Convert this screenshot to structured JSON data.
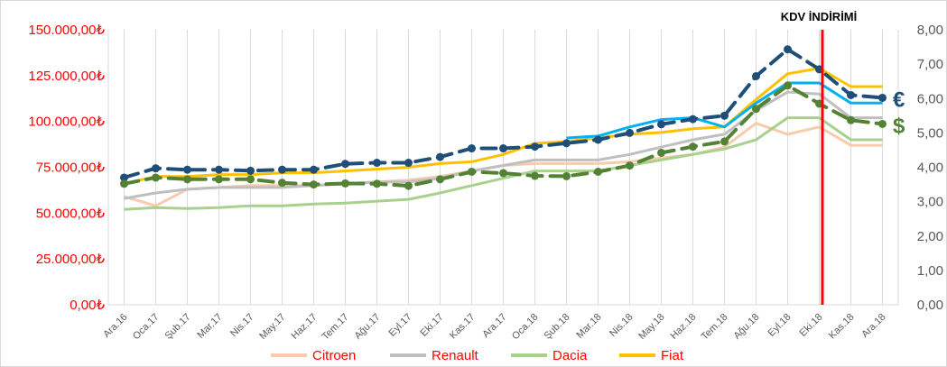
{
  "chart_data": {
    "type": "line",
    "categories": [
      "Ara.16",
      "Oca.17",
      "Şub.17",
      "Mar.17",
      "Nis.17",
      "May.17",
      "Haz.17",
      "Tem.17",
      "Ağu.17",
      "Eyl.17",
      "Eki.17",
      "Kas.17",
      "Ara.17",
      "Oca.18",
      "Şub.18",
      "Mar.18",
      "Nis.18",
      "May.18",
      "Haz.18",
      "Tem.18",
      "Ağu.18",
      "Eyl.18",
      "Eki.18",
      "Kas.18",
      "Ara.18"
    ],
    "y_left": {
      "ylim": [
        0,
        150000
      ],
      "ticks": [
        0,
        25000,
        50000,
        75000,
        100000,
        125000,
        150000
      ],
      "tick_labels": [
        "0,00₺",
        "25.000,00₺",
        "50.000,00₺",
        "75.000,00₺",
        "100.000,00₺",
        "125.000,00₺",
        "150.000,00₺"
      ],
      "color": "#ff0000"
    },
    "y_right": {
      "ylim": [
        0,
        8
      ],
      "ticks": [
        0,
        1,
        2,
        3,
        4,
        5,
        6,
        7,
        8
      ],
      "tick_labels": [
        "0,00",
        "1,00",
        "2,00",
        "3,00",
        "4,00",
        "5,00",
        "6,00",
        "7,00",
        "8,00"
      ],
      "color": "#595959"
    },
    "series": [
      {
        "name": "Citroen",
        "axis": "left",
        "color": "#f8cbad",
        "values": [
          59000,
          54000,
          63000,
          64000,
          65000,
          65000,
          65000,
          66000,
          67000,
          68000,
          70000,
          73000,
          76000,
          77000,
          77000,
          77000,
          78000,
          80000,
          82000,
          86000,
          99000,
          93000,
          97000,
          87000,
          87000
        ]
      },
      {
        "name": "Renault",
        "axis": "left",
        "color": "#bfbfbf",
        "values": [
          58000,
          61000,
          63000,
          64000,
          64000,
          64000,
          65000,
          66000,
          67000,
          67000,
          69000,
          73000,
          76000,
          79000,
          79000,
          79000,
          82000,
          86000,
          90000,
          93000,
          106000,
          116000,
          115000,
          102000,
          102000
        ]
      },
      {
        "name": "Dacia",
        "axis": "left",
        "color": "#a9d18e",
        "values": [
          52000,
          53000,
          52500,
          53000,
          54000,
          54000,
          55000,
          55500,
          56500,
          57500,
          61000,
          65000,
          69000,
          73000,
          73000,
          73000,
          76000,
          79000,
          82000,
          85000,
          90000,
          102000,
          102000,
          90000,
          90000
        ]
      },
      {
        "name": "Fiat",
        "axis": "left",
        "color": "#ffc000",
        "values": [
          66000,
          70000,
          70000,
          71000,
          71000,
          72000,
          72000,
          73000,
          74000,
          75000,
          77000,
          78000,
          82000,
          88000,
          89000,
          91000,
          93000,
          94000,
          96000,
          97000,
          112000,
          126000,
          129000,
          119000,
          119000
        ]
      },
      {
        "axis": "left",
        "color": "#00b0f0",
        "values": [
          null,
          null,
          null,
          null,
          null,
          null,
          null,
          null,
          null,
          null,
          null,
          null,
          null,
          null,
          91000,
          92000,
          97000,
          101000,
          102000,
          97000,
          110000,
          121000,
          121000,
          110000,
          110000
        ]
      },
      {
        "axis": "right",
        "color": "#1f4e79",
        "dash": true,
        "values": [
          3.7,
          3.97,
          3.93,
          3.93,
          3.9,
          3.93,
          3.93,
          4.1,
          4.13,
          4.13,
          4.3,
          4.55,
          4.55,
          4.6,
          4.7,
          4.8,
          5.0,
          5.25,
          5.4,
          5.5,
          6.65,
          7.43,
          6.85,
          6.1,
          6.02
        ]
      },
      {
        "axis": "right",
        "color": "#548235",
        "dash": true,
        "values": [
          3.52,
          3.7,
          3.65,
          3.65,
          3.65,
          3.55,
          3.5,
          3.53,
          3.52,
          3.46,
          3.65,
          3.87,
          3.83,
          3.75,
          3.74,
          3.87,
          4.05,
          4.42,
          4.6,
          4.75,
          5.7,
          6.38,
          5.85,
          5.37,
          5.26
        ]
      }
    ],
    "legend": [
      "Citroen",
      "Renault",
      "Dacia",
      "Fiat"
    ],
    "legend_position": "bottom",
    "annotation": {
      "label": "KDV İNDİRİMİ",
      "at_category": "Eki.18",
      "color": "#ff0000"
    },
    "currency_markers": [
      {
        "symbol": "€",
        "color": "#1f4e79"
      },
      {
        "symbol": "$",
        "color": "#548235"
      }
    ],
    "grid": "vertical"
  }
}
